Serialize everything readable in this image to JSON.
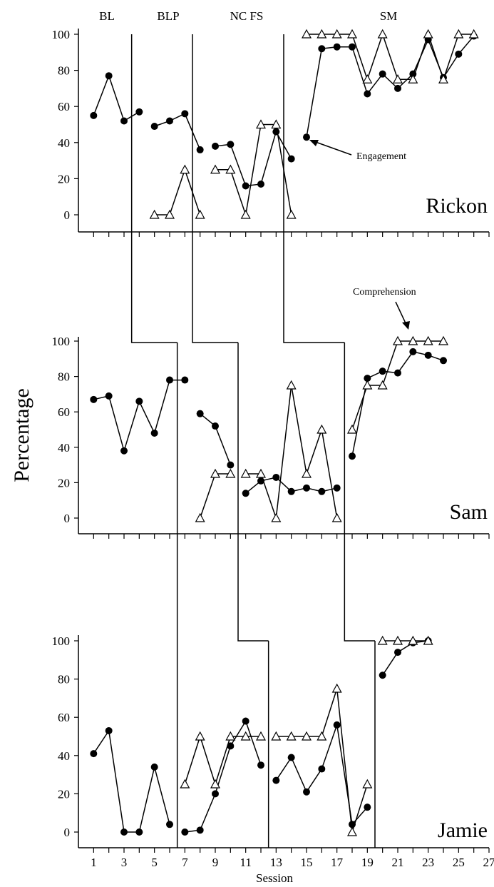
{
  "chart_data": {
    "type": "line",
    "ylabel": "Percentage",
    "xlabel": "Session",
    "x_ticks": [
      "1",
      "3",
      "5",
      "7",
      "9",
      "11",
      "13",
      "15",
      "17",
      "19",
      "21",
      "23",
      "25",
      "27"
    ],
    "y_ticks": [
      "0",
      "20",
      "40",
      "60",
      "80",
      "100"
    ],
    "xlim": [
      0,
      27
    ],
    "ylim": [
      0,
      100
    ],
    "phase_labels": [
      "BL",
      "BLP",
      "NC FS",
      "SM"
    ],
    "annotations": [
      "Engagement",
      "Comprehension"
    ],
    "panels": [
      {
        "participant": "Rickon",
        "phase_changes": [
          3.5,
          7.5,
          13.5
        ],
        "series": [
          {
            "marker": "filled-circle",
            "segments": [
              [
                [
                  1,
                  55
                ],
                [
                  2,
                  77
                ],
                [
                  3,
                  52
                ],
                [
                  4,
                  57
                ]
              ],
              [
                [
                  5,
                  49
                ],
                [
                  6,
                  52
                ],
                [
                  7,
                  56
                ],
                [
                  8,
                  36
                ]
              ],
              [
                [
                  9,
                  38
                ],
                [
                  10,
                  39
                ],
                [
                  11,
                  16
                ],
                [
                  12,
                  17
                ],
                [
                  13,
                  46
                ],
                [
                  14,
                  31
                ]
              ],
              [
                [
                  15,
                  43
                ],
                [
                  16,
                  92
                ],
                [
                  17,
                  93
                ],
                [
                  18,
                  93
                ],
                [
                  19,
                  67
                ],
                [
                  20,
                  78
                ],
                [
                  21,
                  70
                ],
                [
                  22,
                  78
                ],
                [
                  23,
                  97
                ],
                [
                  24,
                  76
                ],
                [
                  25,
                  89
                ],
                [
                  26,
                  99
                ]
              ]
            ]
          },
          {
            "marker": "open-triangle",
            "segments": [
              [
                [
                  5,
                  0
                ],
                [
                  6,
                  0
                ],
                [
                  7,
                  25
                ],
                [
                  8,
                  0
                ]
              ],
              [
                [
                  9,
                  25
                ],
                [
                  10,
                  25
                ],
                [
                  11,
                  0
                ],
                [
                  12,
                  50
                ],
                [
                  13,
                  50
                ],
                [
                  14,
                  0
                ]
              ],
              [
                [
                  15,
                  100
                ],
                [
                  16,
                  100
                ],
                [
                  17,
                  100
                ],
                [
                  18,
                  100
                ],
                [
                  19,
                  75
                ],
                [
                  20,
                  100
                ],
                [
                  21,
                  75
                ],
                [
                  22,
                  75
                ],
                [
                  23,
                  100
                ],
                [
                  24,
                  75
                ],
                [
                  25,
                  100
                ],
                [
                  26,
                  100
                ]
              ]
            ]
          }
        ]
      },
      {
        "participant": "Sam",
        "phase_changes": [
          6.5,
          10.5,
          17.5
        ],
        "series": [
          {
            "marker": "filled-circle",
            "segments": [
              [
                [
                  1,
                  67
                ],
                [
                  2,
                  69
                ],
                [
                  3,
                  38
                ],
                [
                  4,
                  66
                ],
                [
                  5,
                  48
                ],
                [
                  6,
                  78
                ],
                [
                  7,
                  78
                ]
              ],
              [
                [
                  8,
                  59
                ],
                [
                  9,
                  52
                ],
                [
                  10,
                  30
                ]
              ],
              [
                [
                  11,
                  14
                ],
                [
                  12,
                  21
                ],
                [
                  13,
                  23
                ],
                [
                  14,
                  15
                ],
                [
                  15,
                  17
                ],
                [
                  16,
                  15
                ],
                [
                  17,
                  17
                ]
              ],
              [
                [
                  18,
                  35
                ],
                [
                  19,
                  79
                ],
                [
                  20,
                  83
                ],
                [
                  21,
                  82
                ],
                [
                  22,
                  94
                ],
                [
                  23,
                  92
                ],
                [
                  24,
                  89
                ]
              ]
            ]
          },
          {
            "marker": "open-triangle",
            "segments": [
              [
                [
                  8,
                  0
                ],
                [
                  9,
                  25
                ],
                [
                  10,
                  25
                ]
              ],
              [
                [
                  11,
                  25
                ],
                [
                  12,
                  25
                ],
                [
                  13,
                  0
                ],
                [
                  14,
                  75
                ],
                [
                  15,
                  25
                ],
                [
                  16,
                  50
                ],
                [
                  17,
                  0
                ]
              ],
              [
                [
                  18,
                  50
                ],
                [
                  19,
                  75
                ],
                [
                  20,
                  75
                ],
                [
                  21,
                  100
                ],
                [
                  22,
                  100
                ],
                [
                  23,
                  100
                ],
                [
                  24,
                  100
                ]
              ]
            ]
          }
        ]
      },
      {
        "participant": "Jamie",
        "phase_changes": [
          6.5,
          12.5,
          19.5
        ],
        "series": [
          {
            "marker": "filled-circle",
            "segments": [
              [
                [
                  1,
                  41
                ],
                [
                  2,
                  53
                ],
                [
                  3,
                  0
                ],
                [
                  4,
                  0
                ],
                [
                  5,
                  34
                ],
                [
                  6,
                  4
                ]
              ],
              [
                [
                  7,
                  0
                ],
                [
                  8,
                  1
                ],
                [
                  9,
                  20
                ],
                [
                  10,
                  45
                ],
                [
                  11,
                  58
                ],
                [
                  12,
                  35
                ]
              ],
              [
                [
                  13,
                  27
                ],
                [
                  14,
                  39
                ],
                [
                  15,
                  21
                ],
                [
                  16,
                  33
                ],
                [
                  17,
                  56
                ],
                [
                  18,
                  4
                ],
                [
                  19,
                  13
                ]
              ],
              [
                [
                  20,
                  82
                ],
                [
                  21,
                  94
                ],
                [
                  22,
                  99
                ],
                [
                  23,
                  100
                ]
              ]
            ]
          },
          {
            "marker": "open-triangle",
            "segments": [
              [
                [
                  7,
                  25
                ],
                [
                  8,
                  50
                ],
                [
                  9,
                  25
                ],
                [
                  10,
                  50
                ],
                [
                  11,
                  50
                ],
                [
                  12,
                  50
                ]
              ],
              [
                [
                  13,
                  50
                ],
                [
                  14,
                  50
                ],
                [
                  15,
                  50
                ],
                [
                  16,
                  50
                ],
                [
                  17,
                  75
                ],
                [
                  18,
                  0
                ],
                [
                  19,
                  25
                ]
              ],
              [
                [
                  20,
                  100
                ],
                [
                  21,
                  100
                ],
                [
                  22,
                  100
                ],
                [
                  23,
                  100
                ]
              ]
            ]
          }
        ]
      }
    ]
  }
}
